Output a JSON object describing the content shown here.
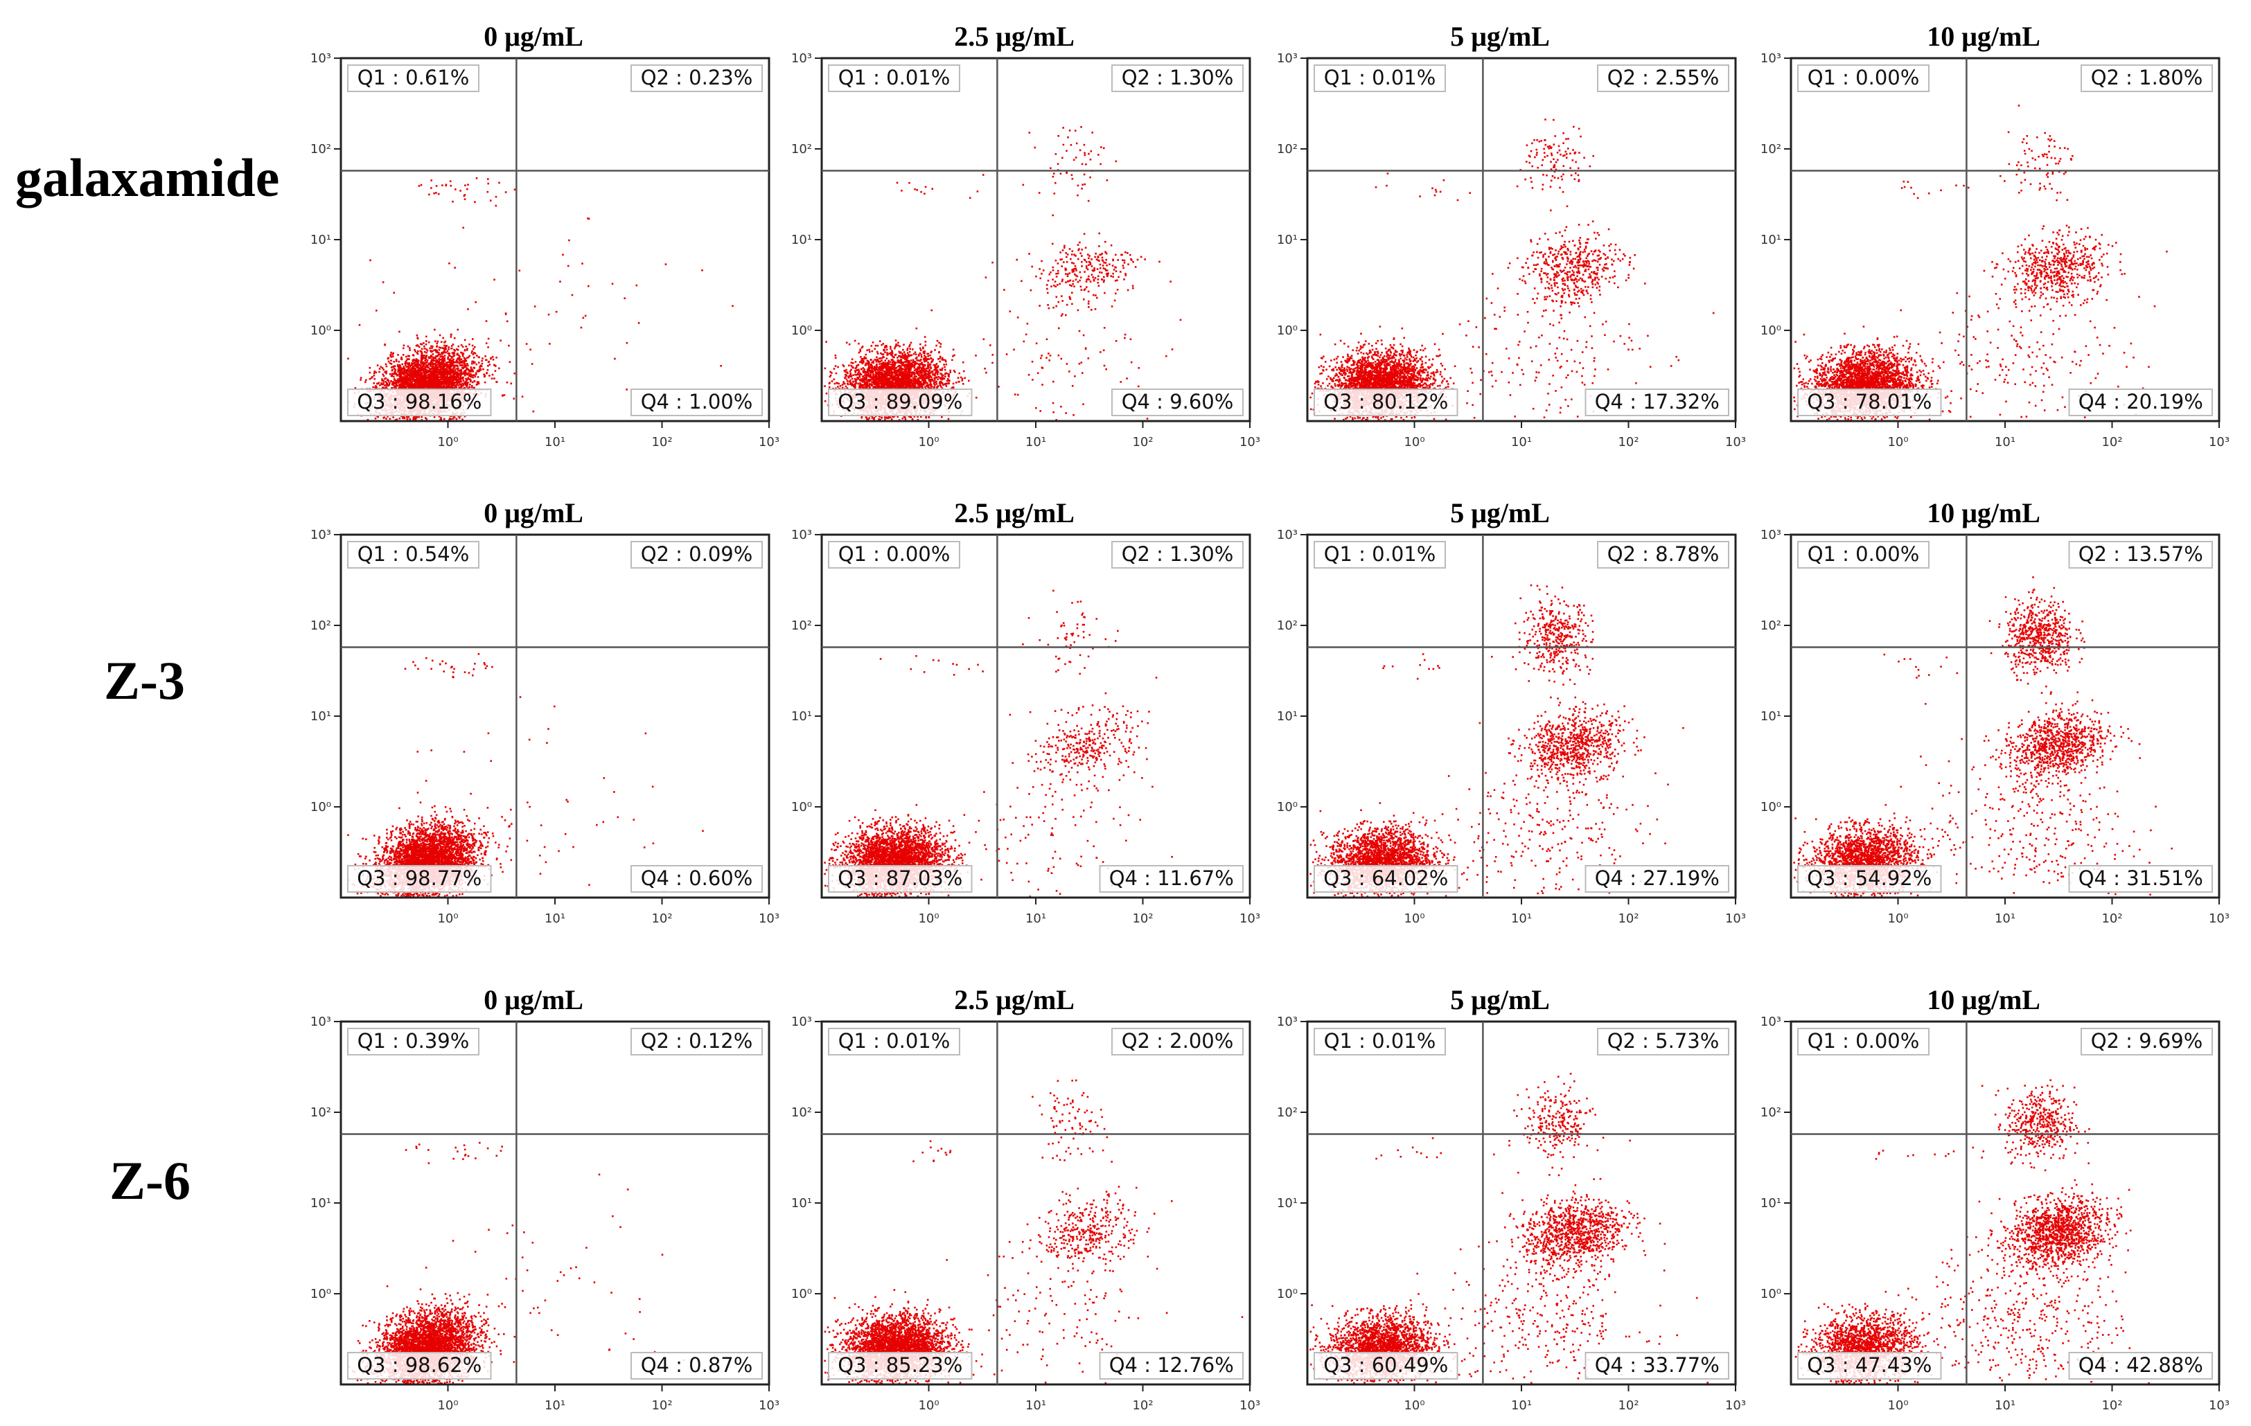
{
  "figure": {
    "rows": [
      {
        "label": "galaxamide"
      },
      {
        "label": "Z-3"
      },
      {
        "label": "Z-6"
      }
    ]
  },
  "colors": {
    "dots": "#e60000",
    "axis": "#222222",
    "quad_line": "#555555",
    "label_box": "#bbbbbb"
  },
  "chart_data": [
    {
      "type": "scatter",
      "row": "galaxamide",
      "title": "0 μg/mL",
      "quadrants": {
        "Q1": "0.61%",
        "Q2": "0.23%",
        "Q3": "98.16%",
        "Q4": "1.00%"
      },
      "x_ticks": [
        "10⁰",
        "10¹",
        "10²",
        "10³"
      ],
      "y_ticks": [
        "10⁰",
        "10¹",
        "10²",
        "10³"
      ]
    },
    {
      "type": "scatter",
      "row": "galaxamide",
      "title": "2.5 μg/mL",
      "quadrants": {
        "Q1": "0.01%",
        "Q2": "1.30%",
        "Q3": "89.09%",
        "Q4": "9.60%"
      },
      "x_ticks": [
        "10⁰",
        "10¹",
        "10²",
        "10³"
      ],
      "y_ticks": [
        "10⁰",
        "10¹",
        "10²",
        "10³"
      ]
    },
    {
      "type": "scatter",
      "row": "galaxamide",
      "title": "5 μg/mL",
      "quadrants": {
        "Q1": "0.01%",
        "Q2": "2.55%",
        "Q3": "80.12%",
        "Q4": "17.32%"
      },
      "x_ticks": [
        "10⁰",
        "10¹",
        "10²",
        "10³"
      ],
      "y_ticks": [
        "10⁰",
        "10¹",
        "10²",
        "10³"
      ]
    },
    {
      "type": "scatter",
      "row": "galaxamide",
      "title": "10 μg/mL",
      "quadrants": {
        "Q1": "0.00%",
        "Q2": "1.80%",
        "Q3": "78.01%",
        "Q4": "20.19%"
      },
      "x_ticks": [
        "10⁰",
        "10¹",
        "10²",
        "10³"
      ],
      "y_ticks": [
        "10⁰",
        "10¹",
        "10²",
        "10³"
      ]
    },
    {
      "type": "scatter",
      "row": "Z-3",
      "title": "0 μg/mL",
      "quadrants": {
        "Q1": "0.54%",
        "Q2": "0.09%",
        "Q3": "98.77%",
        "Q4": "0.60%"
      },
      "x_ticks": [
        "10⁰",
        "10¹",
        "10²",
        "10³"
      ],
      "y_ticks": [
        "10⁰",
        "10¹",
        "10²",
        "10³"
      ]
    },
    {
      "type": "scatter",
      "row": "Z-3",
      "title": "2.5 μg/mL",
      "quadrants": {
        "Q1": "0.00%",
        "Q2": "1.30%",
        "Q3": "87.03%",
        "Q4": "11.67%"
      },
      "x_ticks": [
        "10⁰",
        "10¹",
        "10²",
        "10³"
      ],
      "y_ticks": [
        "10⁰",
        "10¹",
        "10²",
        "10³"
      ]
    },
    {
      "type": "scatter",
      "row": "Z-3",
      "title": "5 μg/mL",
      "quadrants": {
        "Q1": "0.01%",
        "Q2": "8.78%",
        "Q3": "64.02%",
        "Q4": "27.19%"
      },
      "x_ticks": [
        "10⁰",
        "10¹",
        "10²",
        "10³"
      ],
      "y_ticks": [
        "10⁰",
        "10¹",
        "10²",
        "10³"
      ]
    },
    {
      "type": "scatter",
      "row": "Z-3",
      "title": "10 μg/mL",
      "quadrants": {
        "Q1": "0.00%",
        "Q2": "13.57%",
        "Q3": "54.92%",
        "Q4": "31.51%"
      },
      "x_ticks": [
        "10⁰",
        "10¹",
        "10²",
        "10³"
      ],
      "y_ticks": [
        "10⁰",
        "10¹",
        "10²",
        "10³"
      ]
    },
    {
      "type": "scatter",
      "row": "Z-6",
      "title": "0 μg/mL",
      "quadrants": {
        "Q1": "0.39%",
        "Q2": "0.12%",
        "Q3": "98.62%",
        "Q4": "0.87%"
      },
      "x_ticks": [
        "10⁰",
        "10¹",
        "10²",
        "10³"
      ],
      "y_ticks": [
        "10⁰",
        "10¹",
        "10²",
        "10³"
      ]
    },
    {
      "type": "scatter",
      "row": "Z-6",
      "title": "2.5 μg/mL",
      "quadrants": {
        "Q1": "0.01%",
        "Q2": "2.00%",
        "Q3": "85.23%",
        "Q4": "12.76%"
      },
      "x_ticks": [
        "10⁰",
        "10¹",
        "10²",
        "10³"
      ],
      "y_ticks": [
        "10⁰",
        "10¹",
        "10²",
        "10³"
      ]
    },
    {
      "type": "scatter",
      "row": "Z-6",
      "title": "5 μg/mL",
      "quadrants": {
        "Q1": "0.01%",
        "Q2": "5.73%",
        "Q3": "60.49%",
        "Q4": "33.77%"
      },
      "x_ticks": [
        "10⁰",
        "10¹",
        "10²",
        "10³"
      ],
      "y_ticks": [
        "10⁰",
        "10¹",
        "10²",
        "10³"
      ]
    },
    {
      "type": "scatter",
      "row": "Z-6",
      "title": "10 μg/mL",
      "quadrants": {
        "Q1": "0.00%",
        "Q2": "9.69%",
        "Q3": "47.43%",
        "Q4": "42.88%"
      },
      "x_ticks": [
        "10⁰",
        "10¹",
        "10²",
        "10³"
      ],
      "y_ticks": [
        "10⁰",
        "10¹",
        "10²",
        "10³"
      ]
    }
  ]
}
